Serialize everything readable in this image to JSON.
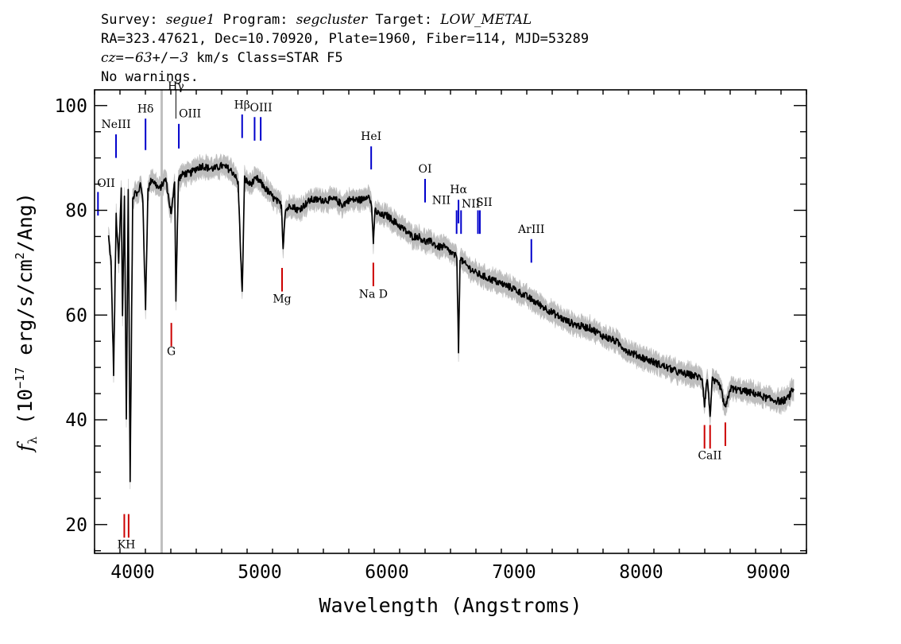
{
  "header": {
    "line1": [
      {
        "text": "Survey: ",
        "italic": false
      },
      {
        "text": "segue1",
        "italic": true
      },
      {
        "text": " Program: ",
        "italic": false
      },
      {
        "text": "segcluster",
        "italic": true
      },
      {
        "text": " Target: ",
        "italic": false
      },
      {
        "text": "LOW_METAL",
        "italic": true
      }
    ],
    "line2": "RA=323.47621, Dec=10.70920, Plate=1960, Fiber=114, MJD=53289",
    "line3": [
      {
        "text": "cz",
        "italic": true
      },
      {
        "text": "=",
        "italic": false
      },
      {
        "text": "−63",
        "italic": true
      },
      {
        "text": "+/",
        "italic": false
      },
      {
        "text": "−3",
        "italic": true
      },
      {
        "text": " km/s Class=STAR F5",
        "italic": false
      }
    ],
    "line4": "No warnings."
  },
  "chart_data": {
    "type": "line",
    "xlabel": "Wavelength (Angstroms)",
    "ylabel_parts": {
      "f": "f",
      "sub": "λ",
      "pre": " (10",
      "exp1": "−17",
      "mid": " erg/s/cm",
      "exp2": "2",
      "post": "/Ang)"
    },
    "xlim": [
      3700,
      9300
    ],
    "ylim": [
      14.5,
      103
    ],
    "x_ticks": [
      4000,
      5000,
      6000,
      7000,
      8000,
      9000
    ],
    "x_tick_labels": [
      "4000",
      "5000",
      "6000",
      "7000",
      "8000",
      "9000"
    ],
    "y_ticks": [
      20,
      40,
      60,
      80,
      100
    ],
    "y_tick_labels": [
      "20",
      "40",
      "60",
      "80",
      "100"
    ],
    "grid": false,
    "series": [
      {
        "role": "flux",
        "color": "#000000",
        "x": [
          3810,
          3830,
          3850,
          3870,
          3890,
          3910,
          3920,
          3935,
          3950,
          3965,
          3980,
          4000,
          4020,
          4040,
          4060,
          4080,
          4101,
          4120,
          4150,
          4180,
          4210,
          4260,
          4304,
          4330,
          4340,
          4360,
          4400,
          4450,
          4500,
          4550,
          4600,
          4650,
          4700,
          4750,
          4800,
          4830,
          4861,
          4880,
          4920,
          4980,
          5050,
          5120,
          5170,
          5183,
          5200,
          5250,
          5300,
          5350,
          5400,
          5450,
          5500,
          5550,
          5600,
          5650,
          5700,
          5750,
          5800,
          5850,
          5880,
          5893,
          5905,
          5950,
          6000,
          6050,
          6100,
          6150,
          6200,
          6250,
          6300,
          6350,
          6400,
          6450,
          6500,
          6550,
          6563,
          6575,
          6600,
          6650,
          6700,
          6800,
          6900,
          7000,
          7100,
          7200,
          7300,
          7400,
          7500,
          7600,
          7700,
          7800,
          7900,
          8000,
          8100,
          8200,
          8300,
          8400,
          8480,
          8498,
          8520,
          8542,
          8560,
          8620,
          8662,
          8700,
          8800,
          8900,
          9000,
          9100,
          9150,
          9200
        ],
        "y": [
          75,
          70,
          49,
          79,
          70,
          84,
          60,
          83,
          40,
          84,
          28,
          82,
          84,
          83,
          85,
          82,
          61,
          84,
          86,
          85,
          84,
          86,
          79,
          86,
          63,
          86,
          87,
          87,
          88,
          88.5,
          88,
          88,
          88.5,
          88,
          87,
          85,
          64,
          86,
          85,
          86,
          84,
          82,
          81,
          73,
          80,
          81,
          80,
          81,
          82,
          82,
          82,
          82,
          82,
          81,
          82,
          82,
          82,
          83,
          81,
          73,
          80,
          79,
          79,
          78,
          77,
          76,
          75,
          75,
          74,
          74,
          73,
          73,
          72,
          71,
          53,
          71,
          70,
          69,
          68,
          67,
          66,
          65,
          63.5,
          62,
          60.5,
          59,
          58,
          57.5,
          56,
          55,
          53,
          52,
          51,
          50,
          49,
          48.5,
          48,
          43,
          48,
          41,
          47.5,
          46.5,
          42,
          46,
          45.5,
          45,
          44,
          43.5,
          44,
          46
        ]
      }
    ],
    "marker_lines": [
      {
        "label": "NeIII",
        "x": 3869,
        "color": "#0000cc",
        "y1": 90,
        "y2": 94.5,
        "ly": 95.7,
        "lx": 3869,
        "anchor": "middle"
      },
      {
        "label": "OII",
        "x": 3727,
        "color": "#0000cc",
        "y1": 79,
        "y2": 83.5,
        "ly": 84.5,
        "lx": 3720,
        "anchor": "start"
      },
      {
        "label": "Hδ",
        "x": 4101,
        "color": "#0000cc",
        "y1": 91.5,
        "y2": 97.5,
        "ly": 98.7,
        "lx": 4101,
        "anchor": "middle"
      },
      {
        "label": "Hγ",
        "x": 4340,
        "color": "#000000",
        "y1": 97.5,
        "y2": 103,
        "ly": 103,
        "lx": 4340,
        "anchor": "middle"
      },
      {
        "label": "OIII",
        "x": 4363,
        "color": "#0000cc",
        "y1": 91.8,
        "y2": 96.5,
        "ly": 97.8,
        "lx": 4363,
        "anchor": "start"
      },
      {
        "label": "Hβ",
        "x": 4861,
        "color": "#0000cc",
        "y1": 93.8,
        "y2": 98.3,
        "ly": 99.4,
        "lx": 4861,
        "anchor": "middle"
      },
      {
        "label": "OIII",
        "x": 4959,
        "color": "#0000cc",
        "y1": 93.3,
        "y2": 97.8,
        "ly": 98.9,
        "lx": 5010,
        "anchor": "middle"
      },
      {
        "label": "",
        "x": 5007,
        "color": "#0000cc",
        "y1": 93.3,
        "y2": 97.8
      },
      {
        "label": "HeI",
        "x": 5876,
        "color": "#0000cc",
        "y1": 87.8,
        "y2": 92.2,
        "ly": 93.4,
        "lx": 5876,
        "anchor": "middle"
      },
      {
        "label": "OI",
        "x": 6300,
        "color": "#0000cc",
        "y1": 81.5,
        "y2": 86,
        "ly": 87.2,
        "lx": 6300,
        "anchor": "middle"
      },
      {
        "label": "NII",
        "x": 6548,
        "color": "#0000cc",
        "y1": 75.5,
        "y2": 80,
        "ly": 81.2,
        "lx": 6500,
        "anchor": "end"
      },
      {
        "label": "Hα",
        "x": 6563,
        "color": "#0000cc",
        "y1": 77.5,
        "y2": 82,
        "ly": 83.3,
        "lx": 6563,
        "anchor": "middle"
      },
      {
        "label": "NII",
        "x": 6583,
        "color": "#0000cc",
        "y1": 75.5,
        "y2": 80,
        "ly": 80.5,
        "lx": 6660,
        "anchor": "middle"
      },
      {
        "label": "SII",
        "x": 6716,
        "color": "#0000cc",
        "y1": 75.5,
        "y2": 80,
        "ly": 80.8,
        "lx": 6700,
        "anchor": "start"
      },
      {
        "label": "",
        "x": 6731,
        "color": "#0000cc",
        "y1": 75.5,
        "y2": 80
      },
      {
        "label": "ArIII",
        "x": 7136,
        "color": "#0000cc",
        "y1": 70,
        "y2": 74.5,
        "ly": 75.7,
        "lx": 7136,
        "anchor": "middle"
      },
      {
        "label": "KH",
        "x": 3934,
        "color": "#cc0000",
        "y1": 17.5,
        "y2": 22,
        "ly": 15.5,
        "lx": 3950,
        "anchor": "middle"
      },
      {
        "label": "",
        "x": 3968,
        "color": "#cc0000",
        "y1": 17.5,
        "y2": 22
      },
      {
        "label": "G",
        "x": 4304,
        "color": "#cc0000",
        "y1": 54,
        "y2": 58.5,
        "ly": 52.4,
        "lx": 4304,
        "anchor": "middle"
      },
      {
        "label": "Mg",
        "x": 5175,
        "color": "#cc0000",
        "y1": 64.5,
        "y2": 69,
        "ly": 62.4,
        "lx": 5175,
        "anchor": "middle"
      },
      {
        "label": "Na  D",
        "x": 5893,
        "color": "#cc0000",
        "y1": 65.5,
        "y2": 70,
        "ly": 63.3,
        "lx": 5893,
        "anchor": "middle"
      },
      {
        "label": "CaII",
        "x": 8498,
        "color": "#cc0000",
        "y1": 34.5,
        "y2": 39,
        "ly": 32.5,
        "lx": 8540,
        "anchor": "middle"
      },
      {
        "label": "",
        "x": 8542,
        "color": "#cc0000",
        "y1": 34.5,
        "y2": 39
      },
      {
        "label": "",
        "x": 8662,
        "color": "#cc0000",
        "y1": 35,
        "y2": 39.5
      }
    ],
    "vertical_band": {
      "x": 4228,
      "color": "#c0c0c0"
    }
  }
}
